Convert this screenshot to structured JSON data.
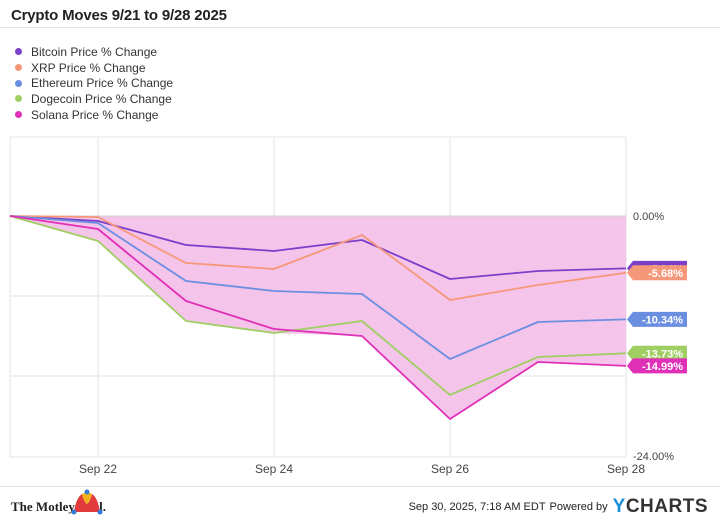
{
  "page_title": "Crypto Moves 9/21 to 9/28 2025",
  "chart_data": {
    "type": "line",
    "title": "Crypto Moves 9/21 to 9/28 2025",
    "xlabel": "",
    "ylabel": "",
    "x": [
      "Sep 21",
      "Sep 22",
      "Sep 23",
      "Sep 24",
      "Sep 25",
      "Sep 26",
      "Sep 27",
      "Sep 28"
    ],
    "x_tick_labels": [
      "Sep 22",
      "Sep 24",
      "Sep 26",
      "Sep 28"
    ],
    "y_tick_labels": [
      "0.00%",
      "-24.00%"
    ],
    "ylim": [
      -24,
      0
    ],
    "legend_position": "top-left",
    "shaded_band_color": "#f5c4ea",
    "series": [
      {
        "name": "Bitcoin Price % Change",
        "color": "#7b3fc9",
        "values": [
          0,
          -0.5,
          -2.9,
          -3.5,
          -2.4,
          -6.3,
          -5.5,
          -5.24
        ],
        "end_label": "-5.24%"
      },
      {
        "name": "XRP Price % Change",
        "color": "#f5987a",
        "values": [
          0,
          -0.1,
          -4.7,
          -5.3,
          -1.9,
          -8.4,
          -6.9,
          -5.68
        ],
        "end_label": "-5.68%"
      },
      {
        "name": "Ethereum Price % Change",
        "color": "#6b8fe0",
        "values": [
          0,
          -0.7,
          -6.5,
          -7.5,
          -7.8,
          -14.3,
          -10.6,
          -10.34
        ],
        "end_label": "-10.34%"
      },
      {
        "name": "Dogecoin Price % Change",
        "color": "#9fce63",
        "values": [
          0,
          -2.5,
          -10.5,
          -11.7,
          -10.5,
          -17.9,
          -14.1,
          -13.73
        ],
        "end_label": "-13.73%"
      },
      {
        "name": "Solana Price % Change",
        "color": "#e030b8",
        "values": [
          0,
          -1.3,
          -8.5,
          -11.3,
          -12.0,
          -20.3,
          -14.6,
          -14.99
        ],
        "end_label": "-14.99%"
      }
    ]
  },
  "footer": {
    "brand": "The Motley Fool.",
    "timestamp": "Sep 30, 2025, 7:18 AM EDT",
    "powered_by": "Powered by",
    "provider_y": "Y",
    "provider_rest": "CHARTS"
  },
  "icons": {
    "logo": "jester-hat-icon"
  }
}
